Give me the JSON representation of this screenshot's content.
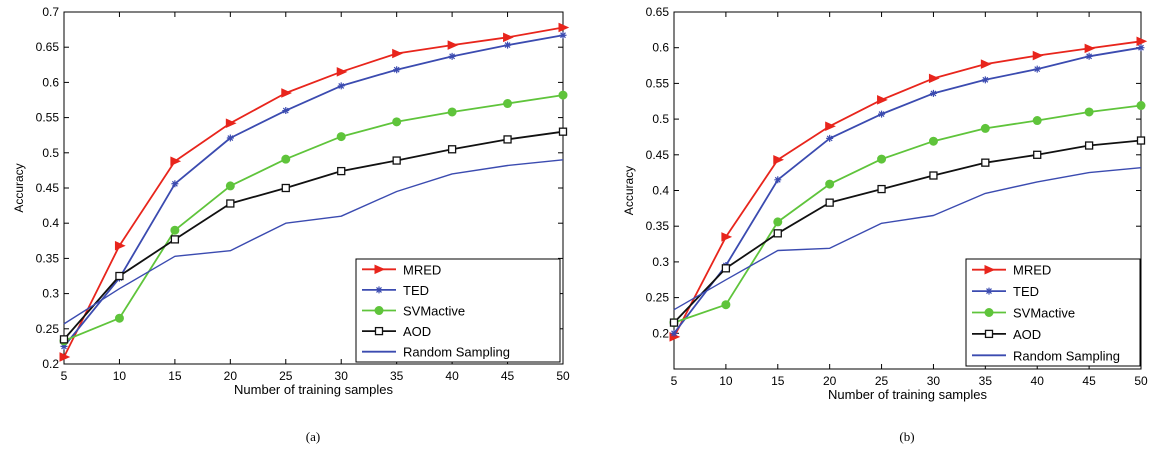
{
  "chart_data": [
    {
      "type": "line",
      "caption": "(a)",
      "xlabel": "Number of training samples",
      "ylabel": "Accuracy",
      "xlim": [
        5,
        50
      ],
      "ylim": [
        0.2,
        0.7
      ],
      "xticks": [
        5,
        10,
        15,
        20,
        25,
        30,
        35,
        40,
        45,
        50
      ],
      "yticks": [
        0.2,
        0.25,
        0.3,
        0.35,
        0.4,
        0.45,
        0.5,
        0.55,
        0.6,
        0.65,
        0.7
      ],
      "ytick_labels": [
        "0.2",
        "0.25",
        "0.3",
        "0.35",
        "0.4",
        "0.45",
        "0.5",
        "0.55",
        "0.6",
        "0.65",
        "0.7"
      ],
      "legend_position": "bottom-right",
      "grid": false,
      "x": [
        5,
        10,
        15,
        20,
        25,
        30,
        35,
        40,
        45,
        50
      ],
      "series": [
        {
          "name": "MRED",
          "color": "#e8251c",
          "marker": "triangle-right",
          "values": [
            0.21,
            0.368,
            0.488,
            0.542,
            0.585,
            0.615,
            0.641,
            0.653,
            0.664,
            0.678
          ]
        },
        {
          "name": "TED",
          "color": "#3b4bb0",
          "marker": "star",
          "values": [
            0.225,
            0.322,
            0.456,
            0.521,
            0.56,
            0.595,
            0.618,
            0.637,
            0.653,
            0.667
          ]
        },
        {
          "name": "SVMactive",
          "color": "#5fc43b",
          "marker": "circle",
          "values": [
            0.233,
            0.265,
            0.39,
            0.453,
            0.491,
            0.523,
            0.544,
            0.558,
            0.57,
            0.582
          ]
        },
        {
          "name": "AOD",
          "color": "#111111",
          "marker": "square",
          "values": [
            0.235,
            0.325,
            0.377,
            0.428,
            0.45,
            0.474,
            0.489,
            0.505,
            0.519,
            0.53
          ]
        },
        {
          "name": "Random Sampling",
          "color": "#3b4bb0",
          "marker": "none",
          "values": [
            0.257,
            0.307,
            0.353,
            0.361,
            0.4,
            0.41,
            0.445,
            0.47,
            0.482,
            0.49
          ]
        }
      ]
    },
    {
      "type": "line",
      "caption": "(b)",
      "xlabel": "Number of training samples",
      "ylabel": "Accuracy",
      "xlim": [
        5,
        50
      ],
      "ylim": [
        0.15,
        0.65
      ],
      "xticks": [
        5,
        10,
        15,
        20,
        25,
        30,
        35,
        40,
        45,
        50
      ],
      "yticks": [
        0.2,
        0.25,
        0.3,
        0.35,
        0.4,
        0.45,
        0.5,
        0.55,
        0.6,
        0.65
      ],
      "ytick_labels": [
        "0.2",
        "0.25",
        "0.3",
        "0.35",
        "0.4",
        "0.45",
        "0.5",
        "0.55",
        "0.6",
        "0.65"
      ],
      "legend_position": "bottom-right",
      "grid": false,
      "x": [
        5,
        10,
        15,
        20,
        25,
        30,
        35,
        40,
        45,
        50
      ],
      "series": [
        {
          "name": "MRED",
          "color": "#e8251c",
          "marker": "triangle-right",
          "values": [
            0.195,
            0.335,
            0.443,
            0.49,
            0.527,
            0.557,
            0.577,
            0.589,
            0.599,
            0.609
          ]
        },
        {
          "name": "TED",
          "color": "#3b4bb0",
          "marker": "star",
          "values": [
            0.2,
            0.295,
            0.415,
            0.473,
            0.507,
            0.536,
            0.555,
            0.57,
            0.588,
            0.6
          ]
        },
        {
          "name": "SVMactive",
          "color": "#5fc43b",
          "marker": "circle",
          "values": [
            0.215,
            0.24,
            0.356,
            0.409,
            0.444,
            0.469,
            0.487,
            0.498,
            0.51,
            0.519
          ]
        },
        {
          "name": "AOD",
          "color": "#111111",
          "marker": "square",
          "values": [
            0.215,
            0.291,
            0.34,
            0.383,
            0.402,
            0.421,
            0.439,
            0.45,
            0.463,
            0.47
          ]
        },
        {
          "name": "Random Sampling",
          "color": "#3b4bb0",
          "marker": "none",
          "values": [
            0.233,
            0.275,
            0.316,
            0.319,
            0.354,
            0.365,
            0.396,
            0.412,
            0.425,
            0.432
          ]
        }
      ]
    }
  ]
}
